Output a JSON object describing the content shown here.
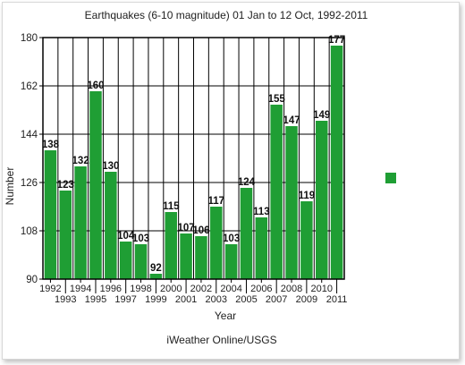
{
  "chart_data": {
    "type": "bar",
    "title": "Earthquakes (6-10 magnitude) 01 Jan to 12 Oct, 1992-2011",
    "xlabel": "Year",
    "ylabel": "Number",
    "source": "iWeather Online/USGS",
    "categories": [
      "1992",
      "1993",
      "1994",
      "1995",
      "1996",
      "1997",
      "1998",
      "1999",
      "2000",
      "2001",
      "2002",
      "2003",
      "2004",
      "2005",
      "2006",
      "2007",
      "2008",
      "2009",
      "2010",
      "2011"
    ],
    "series": [
      {
        "values": [
          138,
          123,
          132,
          160,
          130,
          104,
          103,
          92,
          115,
          107,
          106,
          117,
          103,
          124,
          113,
          155,
          147,
          119,
          149,
          177
        ]
      }
    ],
    "ylim": [
      90,
      180
    ],
    "yticks": [
      90,
      108,
      126,
      144,
      162,
      180
    ],
    "grid": true,
    "bar_color": "#1f9e34",
    "legend_color": "#1f9e34"
  }
}
